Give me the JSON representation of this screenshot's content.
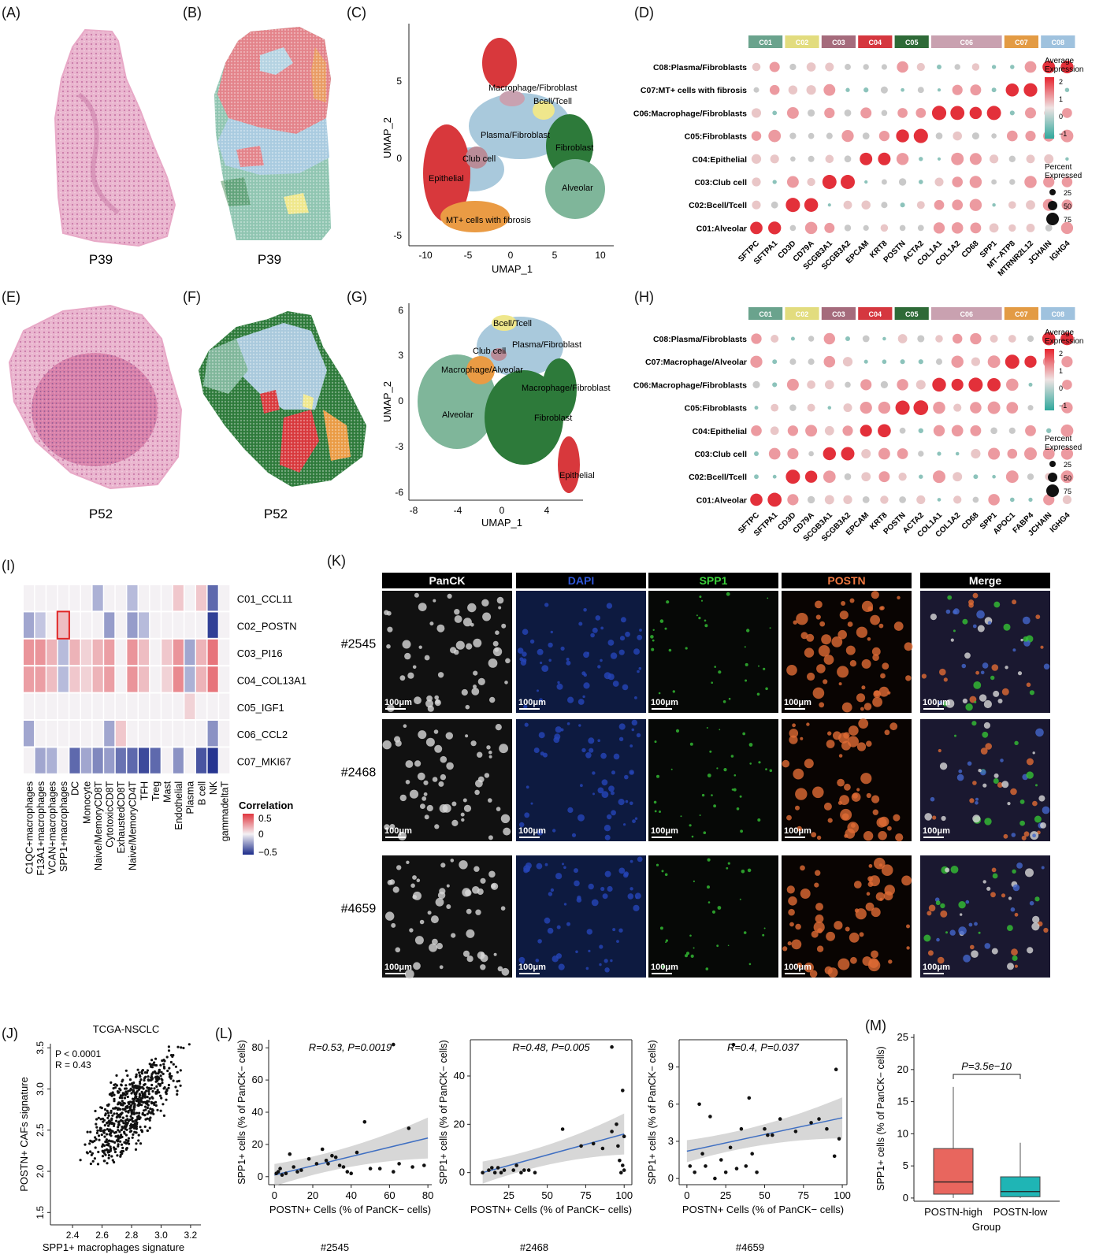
{
  "panel_labels": {
    "A": "(A)",
    "B": "(B)",
    "C": "(C)",
    "D": "(D)",
    "E": "(E)",
    "F": "(F)",
    "G": "(G)",
    "H": "(H)",
    "I": "(I)",
    "J": "(J)",
    "K": "(K)",
    "L": "(L)",
    "M": "(M)"
  },
  "tissue_labels": {
    "A": "P39",
    "B": "P39",
    "E": "P52",
    "F": "P52"
  },
  "colors": {
    "C01": "#6aa38d",
    "C02": "#e2dc7e",
    "C03": "#a56b7c",
    "C04": "#d5373f",
    "C05": "#2e6a37",
    "C06": "#c9a1b0",
    "C07": "#e39b44",
    "C08": "#9fc2de",
    "Alveolar": "#7fb69a",
    "Epithelial": "#d8383c",
    "Fibroblast": "#2d7a3a",
    "Plasma": "#a9c9dc",
    "Bcell": "#efe78c",
    "Club": "#b98c98",
    "Macrophage": "#ea9b44",
    "MT": "#ea9b44"
  },
  "umap_C": {
    "xlabel": "UMAP_1",
    "ylabel": "UMAP_2",
    "xticks": [
      "-10",
      "-5",
      "0",
      "5",
      "10"
    ],
    "yticks": [
      "5",
      "0",
      "-5"
    ],
    "labels": [
      "Macrophage/Fibroblast",
      "Bcell/Tcell",
      "Plasma/Fibroblast",
      "Fibroblast",
      "Club cell",
      "Epithelial",
      "Alveolar",
      "MT+ cells with fibrosis"
    ]
  },
  "umap_G": {
    "xlabel": "UMAP_1",
    "ylabel": "UMAP_2",
    "xticks": [
      "-8",
      "-4",
      "0",
      "4"
    ],
    "yticks": [
      "6",
      "3",
      "0",
      "-3",
      "-6"
    ],
    "labels": [
      "Bcell/Tcell",
      "Club cell",
      "Plasma/Fibroblast",
      "Macrophage/Alveolar",
      "Macrophage/Fibroblast",
      "Alveolar",
      "Fibroblast",
      "Epithelial"
    ]
  },
  "dot_D": {
    "header": [
      "C01",
      "C02",
      "C03",
      "C04",
      "C05",
      "C06",
      "C07",
      "C08"
    ],
    "rows": [
      "C08:Plasma/Fibroblasts",
      "C07:MT+ cells with fibrosis",
      "C06:Macrophage/Fibroblasts",
      "C05:Fibroblasts",
      "C04:Epithelial",
      "C03:Club cell",
      "C02:Bcell/Tcell",
      "C01:Alveolar"
    ],
    "genes": [
      "SFTPC",
      "SFTPA1",
      "CD3D",
      "CD79A",
      "SCGB3A1",
      "SCGB3A2",
      "EPCAM",
      "KRT8",
      "POSTN",
      "ACTA2",
      "COL1A1",
      "COL1A2",
      "CD68",
      "SPP1",
      "MT−ATP8",
      "MTRNR2L12",
      "JCHAIN",
      "IGHG4"
    ]
  },
  "dot_H": {
    "header": [
      "C01",
      "C02",
      "C03",
      "C04",
      "C05",
      "C06",
      "C07",
      "C08"
    ],
    "rows": [
      "C08:Plasma/Fibroblasts",
      "C07:Macrophage/Alveolar",
      "C06:Macrophage/Fibroblasts",
      "C05:Fibroblasts",
      "C04:Epithelial",
      "C03:Club cell",
      "C02:Bcell/Tcell",
      "C01:Alveolar"
    ],
    "genes": [
      "SFTPC",
      "SFTPA1",
      "CD3D",
      "CD79A",
      "SCGB3A1",
      "SCGB3A2",
      "EPCAM",
      "KRT8",
      "POSTN",
      "ACTA2",
      "COL1A1",
      "COL1A2",
      "CD68",
      "SPP1",
      "APOC1",
      "FABP4",
      "JCHAIN",
      "IGHG4"
    ]
  },
  "dot_legend": {
    "avg_title": [
      "Average",
      "Expression"
    ],
    "avg_ticks": [
      "2",
      "1",
      "0",
      "−1"
    ],
    "pct_title": [
      "Percent",
      "Expressed"
    ],
    "pct_ticks": [
      "25",
      "50",
      "75"
    ]
  },
  "heatmap_I": {
    "rows": [
      "C01_CCL11",
      "C02_POSTN",
      "C03_PI16",
      "C04_COL13A1",
      "C05_IGF1",
      "C06_CCL2",
      "C07_MKI67"
    ],
    "cols": [
      "C1QC+macrophages",
      "F13A1+macrophages",
      "VCAN+macrophages",
      "SPP1+macrophages",
      "DC",
      "Monocyte",
      "Naive/MemoryCD8T",
      "CytotoxicCD8T",
      "ExhaustedCD8T",
      "Naive/MemoryCD4T",
      "TFH",
      "Treg",
      "Mast",
      "Endothelial",
      "Plasma",
      "B cell",
      "NK",
      "gammadeltaT"
    ],
    "values": [
      [
        0,
        0,
        0,
        0,
        0,
        0,
        -0.25,
        0,
        0,
        -0.2,
        0,
        0,
        0,
        0.2,
        0,
        0.2,
        -0.6,
        0
      ],
      [
        -0.3,
        -0.15,
        0,
        0.25,
        0,
        0,
        0,
        -0.35,
        0,
        -0.35,
        -0.2,
        0,
        0,
        0,
        0,
        0,
        -0.8,
        0
      ],
      [
        0.45,
        0.45,
        0.3,
        -0.2,
        0.3,
        0.15,
        0.3,
        0.4,
        0,
        0.45,
        0.25,
        0,
        0.2,
        0.45,
        -0.3,
        0.3,
        0.6,
        0
      ],
      [
        0.4,
        0.4,
        0.25,
        -0.2,
        0.2,
        0.15,
        0.3,
        0.4,
        0,
        0.45,
        0.25,
        0,
        0.15,
        0.5,
        -0.25,
        0.3,
        0.6,
        0
      ],
      [
        0,
        0,
        0,
        0,
        0,
        0,
        0,
        0,
        0,
        0,
        0,
        0,
        0,
        0,
        0.15,
        0,
        0,
        0
      ],
      [
        -0.3,
        0,
        0,
        0,
        0,
        0,
        0,
        -0.3,
        0.2,
        0,
        0,
        0,
        0,
        0,
        0,
        0,
        -0.4,
        0
      ],
      [
        0,
        -0.3,
        -0.25,
        0,
        -0.6,
        -0.3,
        -0.45,
        -0.35,
        -0.55,
        -0.6,
        -0.75,
        -0.6,
        0,
        -0.4,
        0,
        -0.7,
        -0.85,
        0
      ]
    ],
    "legend_title": "Correlation",
    "legend_ticks": [
      "0.5",
      "0",
      "−0.5"
    ]
  },
  "if_K": {
    "channels": [
      "PanCK",
      "DAPI",
      "SPP1",
      "POSTN",
      "Merge"
    ],
    "channel_colors": [
      "#ffffff",
      "#2e55d6",
      "#3bd13a",
      "#f07840",
      "#ffffff"
    ],
    "samples": [
      "#2545",
      "#2468",
      "#4659"
    ],
    "scale": "100μm"
  },
  "chart_data": [
    {
      "type": "scatter",
      "panel": "J",
      "title": "TCGA-NSCLC",
      "xlabel": "SPP1+ macrophages signature",
      "ylabel": "POSTN+ CAFs signature",
      "xticks": [
        "2.4",
        "2.6",
        "2.8",
        "3.0",
        "3.2"
      ],
      "yticks": [
        "1.5",
        "2.0",
        "2.5",
        "3.0",
        "3.5"
      ],
      "xlim": [
        2.25,
        3.27
      ],
      "ylim": [
        1.35,
        3.55
      ],
      "stats": [
        "P < 0.0001",
        "R = 0.43"
      ]
    },
    {
      "type": "scatter",
      "panel": "L1",
      "caption": "#2545",
      "annotation": "R=0.53, P=0.0019",
      "xlabel": "POSTN+ Cells (% of PanCK− cells)",
      "ylabel": "SPP1+ cells (% of PanCK− cells)",
      "xticks": [
        "0",
        "20",
        "40",
        "60",
        "80"
      ],
      "yticks": [
        "0",
        "20",
        "40",
        "60",
        "80"
      ],
      "xlim": [
        -3,
        82
      ],
      "ylim": [
        -5,
        85
      ],
      "x": [
        1,
        2,
        3,
        4,
        6,
        8,
        10,
        12,
        14,
        18,
        22,
        25,
        27,
        28,
        30,
        32,
        34,
        36,
        38,
        40,
        43,
        47,
        50,
        55,
        62,
        65,
        70,
        72,
        78,
        62
      ],
      "y": [
        2,
        3,
        5,
        1,
        2,
        14,
        6,
        3,
        4,
        11,
        8,
        17,
        10,
        8,
        13,
        12,
        7,
        6,
        3,
        2,
        15,
        34,
        5,
        5,
        3,
        8,
        30,
        6,
        7,
        82
      ],
      "fit": [
        [
          0,
          1
        ],
        [
          80,
          24
        ]
      ]
    },
    {
      "type": "scatter",
      "panel": "L2",
      "caption": "#2468",
      "annotation": "R=0.48, P=0.005",
      "xlabel": "POSTN+ Cells (% of PanCK− cells)",
      "ylabel": "SPP1+ cells (% of PanCK− cells)",
      "xticks": [
        "25",
        "50",
        "75",
        "100"
      ],
      "yticks": [
        "0",
        "20",
        "40"
      ],
      "xlim": [
        0,
        105
      ],
      "ylim": [
        -5,
        55
      ],
      "x": [
        8,
        12,
        14,
        16,
        18,
        20,
        22,
        28,
        30,
        33,
        35,
        38,
        42,
        60,
        72,
        80,
        86,
        92,
        95,
        96,
        97,
        98,
        99,
        99,
        100,
        100,
        92
      ],
      "y": [
        0,
        1,
        2,
        0,
        2,
        0,
        1,
        1,
        3,
        0,
        1,
        1,
        0,
        18,
        11,
        12,
        10,
        17,
        20,
        11,
        5,
        0,
        34,
        3,
        15,
        1,
        52
      ],
      "fit": [
        [
          8,
          0
        ],
        [
          100,
          16
        ]
      ]
    },
    {
      "type": "scatter",
      "panel": "L3",
      "caption": "#4659",
      "annotation": "R=0.4, P=0.037",
      "xlabel": "POSTN+ Cells (% of PanCK− cells)",
      "ylabel": "SPP1+ cells (% of PanCK− cells)",
      "xticks": [
        "0",
        "25",
        "50",
        "75",
        "100"
      ],
      "yticks": [
        "0",
        "3",
        "6",
        "9"
      ],
      "xlim": [
        -5,
        103
      ],
      "ylim": [
        -0.5,
        11.2
      ],
      "x": [
        2,
        5,
        8,
        10,
        12,
        15,
        18,
        22,
        25,
        28,
        30,
        32,
        35,
        38,
        40,
        42,
        45,
        50,
        52,
        55,
        60,
        70,
        80,
        85,
        90,
        95,
        98,
        96
      ],
      "y": [
        1,
        0.5,
        6,
        2,
        1,
        5,
        0,
        1.5,
        0.5,
        2.5,
        10.8,
        0.8,
        4,
        1,
        6.5,
        2,
        0.5,
        4,
        3.5,
        3.5,
        4.8,
        3.8,
        4.5,
        4.8,
        4,
        1.8,
        3.2,
        8.8
      ],
      "fit": [
        [
          0,
          2.2
        ],
        [
          100,
          4.9
        ]
      ]
    },
    {
      "type": "box",
      "panel": "M",
      "ylabel": "SPP1+ cells (% of PanCK− cells)",
      "xlabel": "Group",
      "categories": [
        "POSTN-high",
        "POSTN-low"
      ],
      "yticks": [
        "0",
        "5",
        "10",
        "15",
        "20",
        "25"
      ],
      "ylim": [
        -0.5,
        25.5
      ],
      "boxes": [
        {
          "min": 0,
          "q1": 0.6,
          "median": 2.5,
          "q3": 7.7,
          "max": 17.3,
          "color": "#e8665e"
        },
        {
          "min": 0,
          "q1": 0.2,
          "median": 1.0,
          "q3": 3.3,
          "max": 8.6,
          "color": "#1fb5b5"
        }
      ],
      "annotation": "P=3.5e−10"
    }
  ]
}
